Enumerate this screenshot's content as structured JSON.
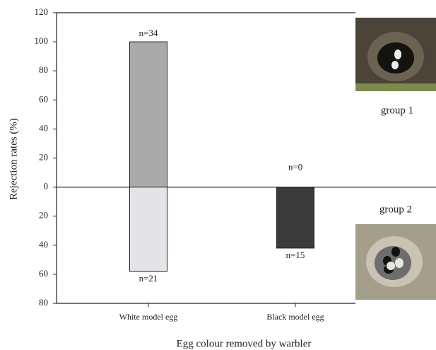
{
  "chart_data": {
    "type": "bar",
    "y_label": "Rejection rates (%)",
    "x_label": "Egg colour removed by warbler",
    "categories": [
      "White model egg",
      "Black model egg"
    ],
    "series": [
      {
        "name": "group 1",
        "colors": [
          "#aaaaaa",
          "#aaaaaa"
        ],
        "values": [
          100,
          0
        ],
        "n_labels": [
          "n=34",
          "n=0"
        ]
      },
      {
        "name": "group 2",
        "colors": [
          "#e4e4e8",
          "#3b3b3b"
        ],
        "values": [
          -58,
          -42
        ],
        "n_labels": [
          "n=21",
          "n=15"
        ]
      }
    ],
    "ylim": [
      -80,
      120
    ],
    "yticks": [
      120,
      100,
      80,
      60,
      40,
      20,
      0,
      {
        "value": -20,
        "label": "20"
      },
      {
        "value": -40,
        "label": "40"
      },
      {
        "value": -60,
        "label": "60"
      },
      {
        "value": -80,
        "label": "80"
      }
    ]
  }
}
